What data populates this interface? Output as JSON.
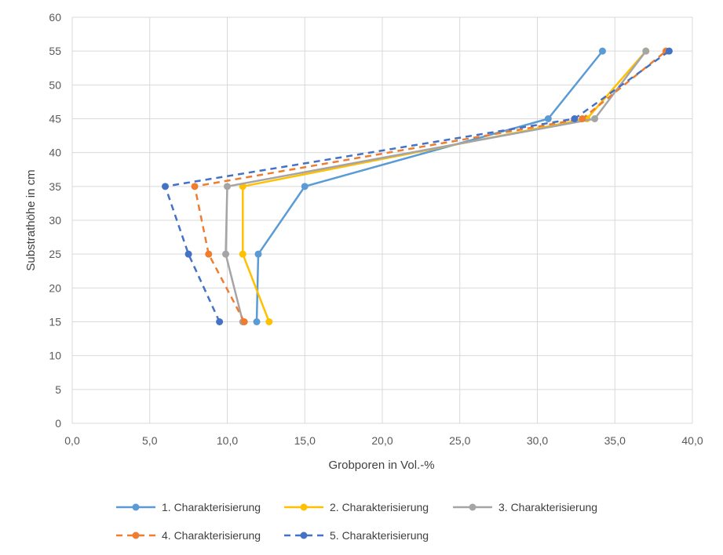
{
  "chart_data": {
    "type": "scatter",
    "title": "",
    "xlabel": "Grobporen in Vol.-%",
    "ylabel": "Substrathöhe in cm",
    "xlim": [
      0,
      40
    ],
    "ylim": [
      0,
      60
    ],
    "x_ticks": [
      "0,0",
      "5,0",
      "10,0",
      "15,0",
      "20,0",
      "25,0",
      "30,0",
      "35,0",
      "40,0"
    ],
    "y_ticks": [
      "0",
      "5",
      "10",
      "15",
      "20",
      "25",
      "30",
      "35",
      "40",
      "45",
      "50",
      "55",
      "60"
    ],
    "grid": true,
    "legend_position": "bottom",
    "series": [
      {
        "name": "1. Charakterisierung",
        "color": "#5b9bd5",
        "dash": "solid",
        "points": [
          [
            11.9,
            15
          ],
          [
            12.0,
            25
          ],
          [
            15.0,
            35
          ],
          [
            30.7,
            45
          ],
          [
            34.2,
            55
          ]
        ]
      },
      {
        "name": "2. Charakterisierung",
        "color": "#ffc000",
        "dash": "solid",
        "points": [
          [
            12.7,
            15
          ],
          [
            11.0,
            25
          ],
          [
            11.0,
            35
          ],
          [
            33.2,
            45
          ],
          [
            37.0,
            55
          ]
        ]
      },
      {
        "name": "3. Charakterisierung",
        "color": "#a5a5a5",
        "dash": "solid",
        "points": [
          [
            11.0,
            15
          ],
          [
            9.9,
            25
          ],
          [
            10.0,
            35
          ],
          [
            33.7,
            45
          ],
          [
            37.0,
            55
          ]
        ]
      },
      {
        "name": "4. Charakterisierung",
        "color": "#ed7d31",
        "dash": "dashed",
        "points": [
          [
            11.1,
            15
          ],
          [
            8.8,
            25
          ],
          [
            7.9,
            35
          ],
          [
            32.9,
            45
          ],
          [
            38.3,
            55
          ]
        ]
      },
      {
        "name": "5. Charakterisierung",
        "color": "#4472c4",
        "dash": "dashed",
        "points": [
          [
            9.5,
            15
          ],
          [
            7.5,
            25
          ],
          [
            6.0,
            35
          ],
          [
            32.4,
            45
          ],
          [
            38.5,
            55
          ]
        ]
      }
    ]
  }
}
